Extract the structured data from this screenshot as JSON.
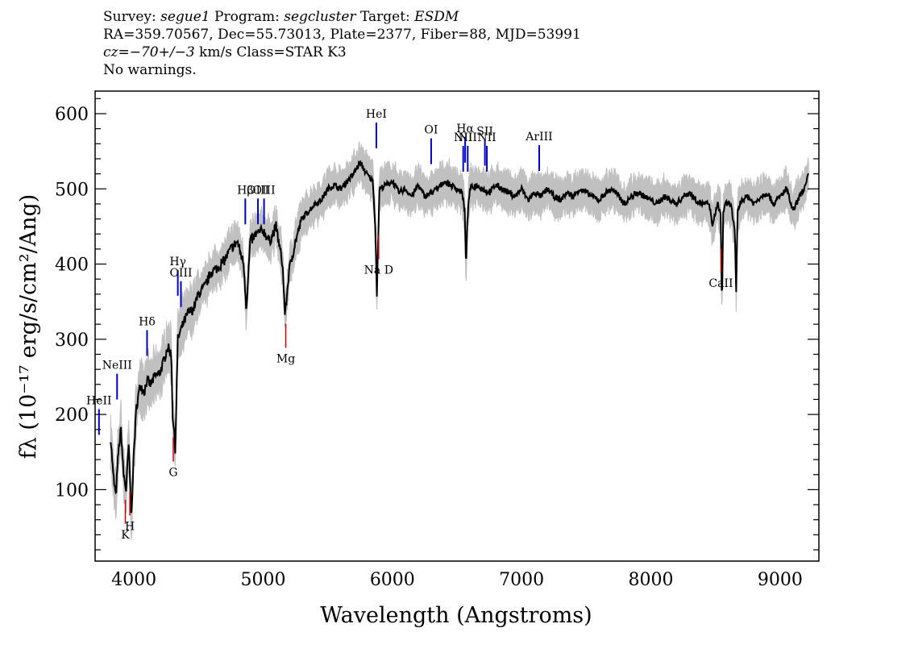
{
  "header": {
    "survey_label": "Survey: ",
    "survey": "segue1",
    "program_label": " Program: ",
    "program": "segcluster",
    "target_label": " Target: ",
    "target": "ESDM",
    "line2": "RA=359.70567, Dec=55.73013, Plate=2377, Fiber=88, MJD=53991",
    "cz_label": "cz",
    "cz_value": "=−70+/−3",
    "cz_rest": " km/s Class=STAR K3",
    "line4": "No warnings."
  },
  "chart_data": {
    "type": "line",
    "xlabel": "Wavelength (Angstroms)",
    "ylabel": "fλ (10⁻¹⁷ erg/s/cm²/Ang)",
    "xlim": [
      3700,
      9300
    ],
    "ylim": [
      5,
      630
    ],
    "x_ticks": [
      4000,
      5000,
      6000,
      7000,
      8000,
      9000
    ],
    "y_ticks": [
      100,
      200,
      300,
      400,
      500,
      600
    ],
    "x_minor_step": 200,
    "y_minor_step": 20,
    "series": [
      {
        "name": "flux",
        "color": "#000000",
        "x": [
          3820,
          3840,
          3860,
          3880,
          3900,
          3920,
          3940,
          3960,
          3980,
          4000,
          4020,
          4050,
          4080,
          4100,
          4130,
          4160,
          4200,
          4230,
          4260,
          4290,
          4300,
          4320,
          4340,
          4380,
          4420,
          4460,
          4500,
          4550,
          4600,
          4650,
          4700,
          4750,
          4800,
          4850,
          4870,
          4900,
          4950,
          5000,
          5050,
          5100,
          5150,
          5170,
          5180,
          5200,
          5250,
          5300,
          5350,
          5400,
          5450,
          5500,
          5550,
          5600,
          5650,
          5700,
          5750,
          5800,
          5850,
          5870,
          5880,
          5890,
          5900,
          5950,
          6000,
          6050,
          6100,
          6150,
          6200,
          6250,
          6300,
          6350,
          6400,
          6450,
          6500,
          6540,
          6560,
          6570,
          6580,
          6600,
          6650,
          6700,
          6750,
          6800,
          6850,
          6900,
          6950,
          7000,
          7050,
          7100,
          7150,
          7200,
          7250,
          7300,
          7350,
          7400,
          7450,
          7500,
          7550,
          7600,
          7650,
          7700,
          7750,
          7800,
          7850,
          7900,
          7950,
          8000,
          8050,
          8100,
          8150,
          8200,
          8250,
          8300,
          8350,
          8400,
          8450,
          8480,
          8500,
          8520,
          8540,
          8550,
          8560,
          8580,
          8620,
          8650,
          8660,
          8670,
          8700,
          8750,
          8800,
          8850,
          8900,
          8950,
          9000,
          9050,
          9100,
          9150,
          9200,
          9220
        ],
        "y": [
          170,
          120,
          90,
          150,
          180,
          120,
          100,
          160,
          65,
          150,
          210,
          240,
          230,
          245,
          240,
          250,
          255,
          270,
          290,
          280,
          200,
          155,
          300,
          320,
          335,
          340,
          360,
          370,
          390,
          395,
          405,
          420,
          430,
          400,
          340,
          430,
          440,
          445,
          430,
          450,
          400,
          330,
          350,
          390,
          430,
          460,
          470,
          480,
          485,
          500,
          505,
          500,
          510,
          520,
          535,
          520,
          510,
          440,
          360,
          430,
          500,
          505,
          510,
          495,
          500,
          490,
          505,
          490,
          495,
          500,
          510,
          505,
          500,
          495,
          470,
          390,
          460,
          500,
          505,
          500,
          495,
          505,
          500,
          495,
          490,
          500,
          485,
          495,
          490,
          500,
          490,
          485,
          495,
          490,
          500,
          495,
          490,
          485,
          495,
          500,
          490,
          480,
          490,
          495,
          490,
          485,
          480,
          490,
          485,
          480,
          490,
          495,
          485,
          480,
          480,
          450,
          470,
          480,
          465,
          340,
          470,
          480,
          480,
          440,
          360,
          470,
          485,
          490,
          480,
          490,
          495,
          480,
          490,
          500,
          470,
          490,
          505,
          520
        ]
      },
      {
        "name": "error band",
        "color": "#c0c0c0"
      }
    ],
    "line_labels_emission": [
      {
        "label": "HeII",
        "wave": 3730,
        "y": 205
      },
      {
        "label": "NeIII",
        "wave": 3870,
        "y": 252
      },
      {
        "label": "Hδ",
        "wave": 4102,
        "y": 310
      },
      {
        "label": "Hγ",
        "wave": 4340,
        "y": 390
      },
      {
        "label": "OIII",
        "wave": 4364,
        "y": 375
      },
      {
        "label": "Hβ",
        "wave": 4862,
        "y": 485
      },
      {
        "label": "OIII",
        "wave": 4960,
        "y": 485
      },
      {
        "label": "OIII",
        "wave": 5007,
        "y": 485
      },
      {
        "label": "HeI",
        "wave": 5876,
        "y": 586
      },
      {
        "label": "OI",
        "wave": 6300,
        "y": 565
      },
      {
        "label": "NII",
        "wave": 6548,
        "y": 555
      },
      {
        "label": "Hα",
        "wave": 6563,
        "y": 567
      },
      {
        "label": "NII",
        "wave": 6583,
        "y": 555
      },
      {
        "label": "SII",
        "wave": 6716,
        "y": 563
      },
      {
        "label": "NII",
        "wave": 6731,
        "y": 555
      },
      {
        "label": "ArIII",
        "wave": 7136,
        "y": 556
      }
    ],
    "line_labels_absorption": [
      {
        "label": "K",
        "wave": 3934
      },
      {
        "label": "H",
        "wave": 3969
      },
      {
        "label": "G",
        "wave": 4305
      },
      {
        "label": "Mg",
        "wave": 5175
      },
      {
        "label": "Na D",
        "wave": 5894
      },
      {
        "label": "CaII",
        "wave": 8542
      }
    ]
  }
}
